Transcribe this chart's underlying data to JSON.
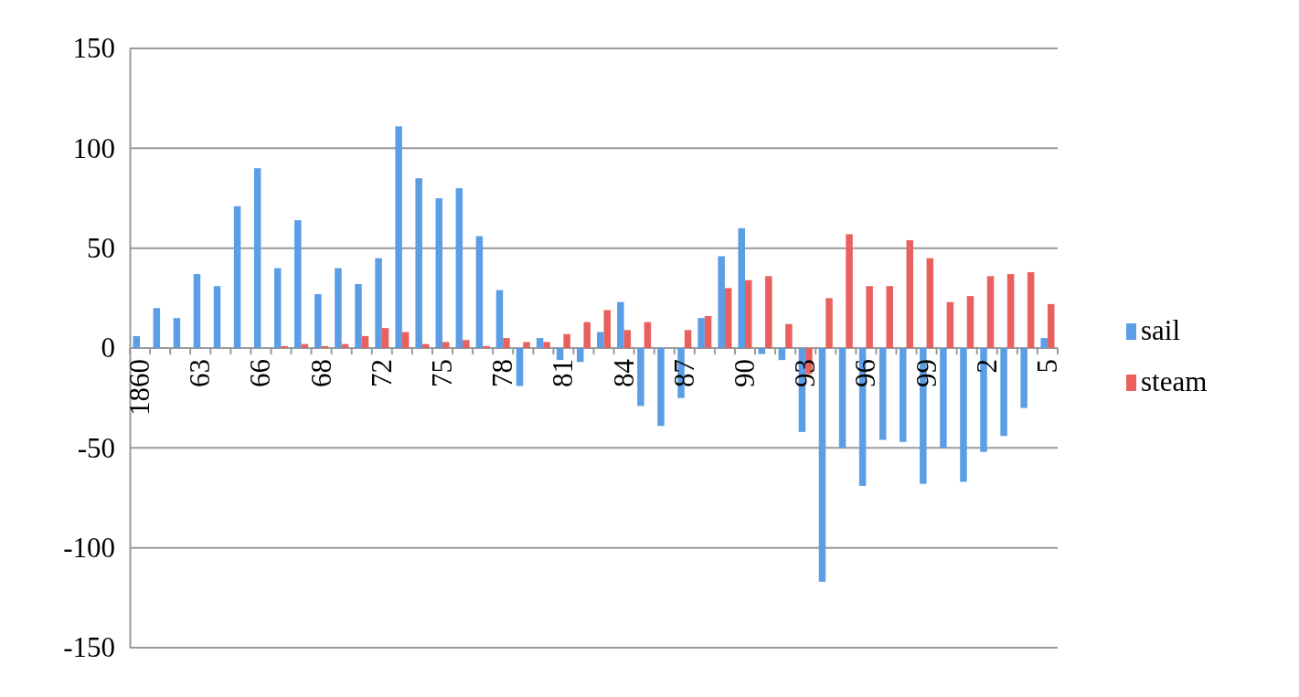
{
  "chart_data": {
    "type": "bar",
    "categories": [
      "1860",
      null,
      null,
      "63",
      null,
      null,
      "66",
      null,
      null,
      "68",
      null,
      null,
      "72",
      null,
      null,
      "75",
      null,
      null,
      "78",
      null,
      null,
      "81",
      null,
      null,
      "84",
      null,
      null,
      "87",
      null,
      null,
      "90",
      null,
      null,
      "93",
      null,
      null,
      "96",
      null,
      null,
      "99",
      null,
      null,
      "2",
      null,
      null,
      "5"
    ],
    "series": [
      {
        "name": "sail",
        "color": "#5b9ee6",
        "values": [
          6,
          20,
          15,
          37,
          31,
          71,
          90,
          40,
          64,
          27,
          40,
          32,
          45,
          111,
          85,
          75,
          80,
          56,
          29,
          -19,
          5,
          -6,
          -7,
          8,
          23,
          -29,
          -39,
          -25,
          15,
          46,
          60,
          -3,
          -6,
          -42,
          -117,
          -50,
          -69,
          -46,
          -47,
          -68,
          -50,
          -67,
          -52,
          -44,
          -30,
          5
        ]
      },
      {
        "name": "steam",
        "color": "#e8615e",
        "values": [
          0,
          0,
          0,
          0,
          0,
          0,
          0,
          1,
          2,
          1,
          2,
          6,
          10,
          8,
          2,
          3,
          4,
          1,
          5,
          3,
          3,
          7,
          13,
          19,
          9,
          13,
          0,
          9,
          16,
          30,
          34,
          36,
          12,
          -13,
          25,
          57,
          31,
          31,
          54,
          45,
          23,
          26,
          36,
          37,
          38,
          22
        ]
      }
    ],
    "ylim": [
      -150,
      150
    ],
    "yticks": [
      -150,
      -100,
      -50,
      0,
      50,
      100,
      150
    ],
    "grid": "y",
    "legend": "right"
  }
}
